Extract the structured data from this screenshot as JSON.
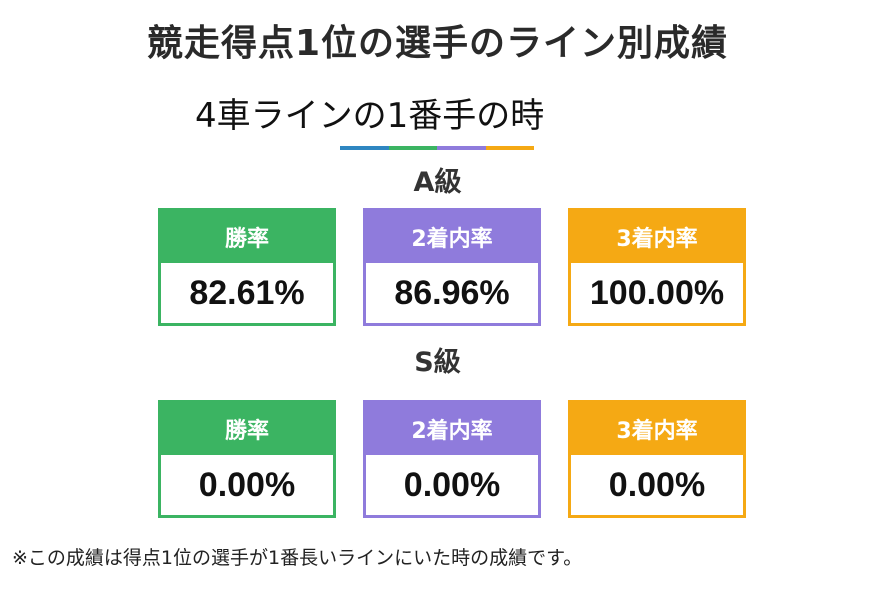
{
  "title": "競走得点1位の選手のライン別成績",
  "subtitle": "4車ラインの1番手の時",
  "colors": {
    "green": "#3bb462",
    "purple": "#8f7bdc",
    "orange": "#f5a914",
    "blue": "#2e86c1",
    "deco": [
      "#2e86c1",
      "#3bb462",
      "#8f7bdc",
      "#f5a914"
    ]
  },
  "grades": [
    {
      "label": "A級",
      "stats": [
        {
          "label": "勝率",
          "value": "82.61%",
          "color": "green"
        },
        {
          "label": "2着内率",
          "value": "86.96%",
          "color": "purple"
        },
        {
          "label": "3着内率",
          "value": "100.00%",
          "color": "orange"
        }
      ]
    },
    {
      "label": "S級",
      "stats": [
        {
          "label": "勝率",
          "value": "0.00%",
          "color": "green"
        },
        {
          "label": "2着内率",
          "value": "0.00%",
          "color": "purple"
        },
        {
          "label": "3着内率",
          "value": "0.00%",
          "color": "orange"
        }
      ]
    }
  ],
  "footnote": "※この成績は得点1位の選手が1番長いラインにいた時の成績です。"
}
